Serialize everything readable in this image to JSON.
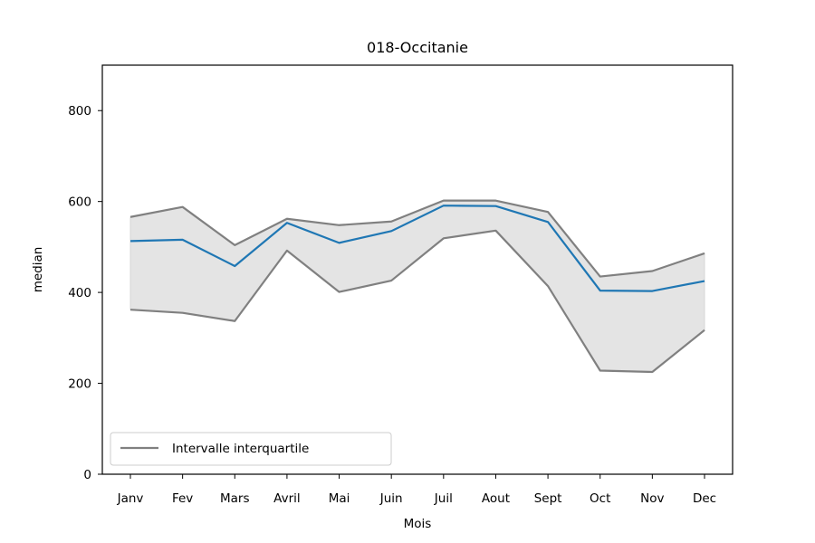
{
  "chart_data": {
    "type": "line",
    "title": "018-Occitanie",
    "xlabel": "Mois",
    "ylabel": "median",
    "categories": [
      "Janv",
      "Fev",
      "Mars",
      "Avril",
      "Mai",
      "Juin",
      "Juil",
      "Aout",
      "Sept",
      "Oct",
      "Nov",
      "Dec"
    ],
    "ylim": [
      0,
      900
    ],
    "yticks": [
      0,
      200,
      400,
      600,
      800
    ],
    "grid": false,
    "legend": {
      "placement": "lower-left",
      "entries": [
        "Intervalle interquartile"
      ]
    },
    "colors": {
      "median": "#1f77b4",
      "quartile": "#808080",
      "band": "#e4e4e4"
    },
    "series": [
      {
        "role": "median",
        "values": [
          513,
          516,
          458,
          553,
          509,
          535,
          591,
          590,
          555,
          404,
          403,
          425
        ]
      },
      {
        "name": "Intervalle interquartile",
        "role": "q3",
        "values": [
          566,
          588,
          504,
          562,
          548,
          556,
          602,
          602,
          577,
          435,
          447,
          486
        ]
      },
      {
        "role": "q1",
        "values": [
          362,
          355,
          337,
          492,
          401,
          426,
          519,
          536,
          414,
          228,
          225,
          317
        ]
      }
    ]
  }
}
